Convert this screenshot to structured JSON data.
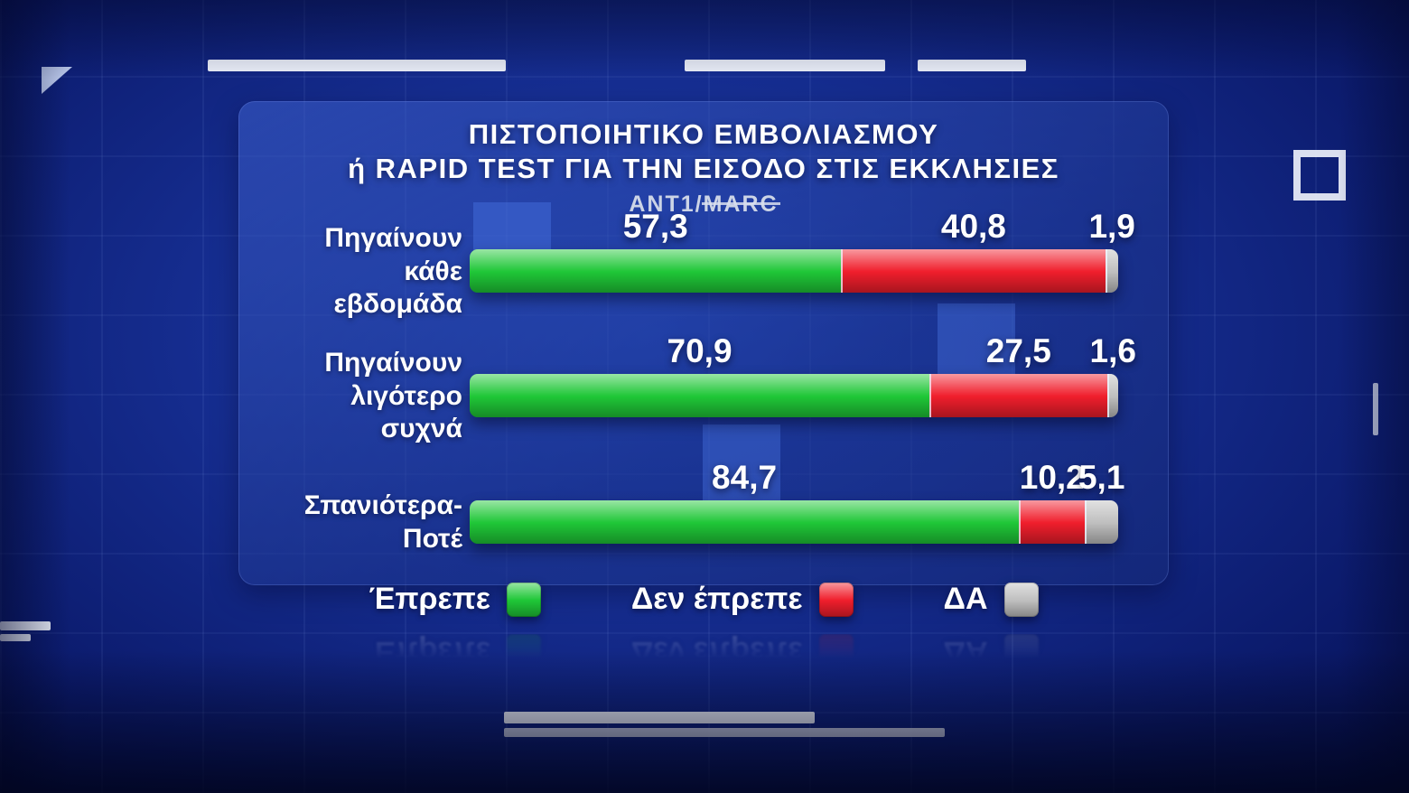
{
  "header": {
    "title_line1": "ΠΙΣΤΟΠΟΙΗΤΙΚΟ ΕΜΒΟΛΙΑΣΜΟΥ",
    "title_line2": "ή RAPID TEST ΓΙΑ ΤΗΝ ΕΙΣΟΔΟ ΣΤΙΣ ΕΚΚΛΗΣΙΕΣ",
    "source_prefix": "ANT1/",
    "source_name": "MARC"
  },
  "chart_data": {
    "type": "bar",
    "orientation": "horizontal",
    "stacked": true,
    "unit": "percent",
    "xlim": [
      0,
      100
    ],
    "title": "ΠΙΣΤΟΠΟΙΗΤΙΚΟ ΕΜΒΟΛΙΑΣΜΟΥ ή RAPID TEST ΓΙΑ ΤΗΝ ΕΙΣΟΔΟ ΣΤΙΣ ΕΚΚΛΗΣΙΕΣ",
    "source": "ANT1/MARC",
    "legend_position": "bottom",
    "categories": [
      "Πηγαίνουν κάθε εβδομάδα",
      "Πηγαίνουν λιγότερο συχνά",
      "Σπανιότερα-Ποτέ"
    ],
    "category_labels_multiline": [
      "Πηγαίνουν\nκάθε\nεβδομάδα",
      "Πηγαίνουν\nλιγότερο\nσυχνά",
      "Σπανιότερα-\nΠοτέ"
    ],
    "series": [
      {
        "name": "Έπρεπε",
        "color": "#1fc737",
        "values": [
          57.3,
          70.9,
          84.7
        ]
      },
      {
        "name": "Δεν έπρεπε",
        "color": "#f01e2c",
        "values": [
          40.8,
          27.5,
          10.2
        ]
      },
      {
        "name": "ΔΑ",
        "color": "#bfbfbf",
        "values": [
          1.9,
          1.6,
          5.1
        ]
      }
    ],
    "value_labels": [
      [
        "57,3",
        "40,8",
        "1,9"
      ],
      [
        "70,9",
        "27,5",
        "1,6"
      ],
      [
        "84,7",
        "10,2",
        "5,1"
      ]
    ]
  },
  "colors": {
    "green": "#1fc737",
    "red": "#f01e2c",
    "gray": "#bfbfbf",
    "background": "#0b1a6b",
    "panel": "#24459f"
  }
}
